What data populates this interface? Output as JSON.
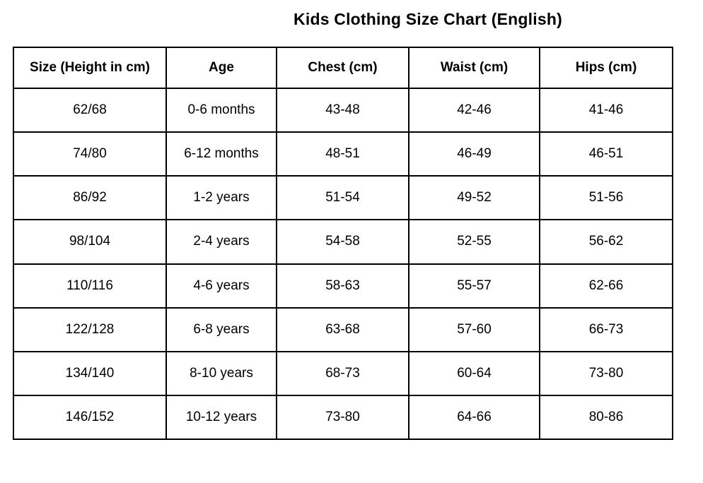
{
  "title": "Kids Clothing Size Chart (English)",
  "table": {
    "columns": [
      "Size (Height in cm)",
      "Age",
      "Chest (cm)",
      "Waist (cm)",
      "Hips (cm)"
    ],
    "rows": [
      [
        "62/68",
        "0-6 months",
        "43-48",
        "42-46",
        "41-46"
      ],
      [
        "74/80",
        "6-12 months",
        "48-51",
        "46-49",
        "46-51"
      ],
      [
        "86/92",
        "1-2 years",
        "51-54",
        "49-52",
        "51-56"
      ],
      [
        "98/104",
        "2-4 years",
        "54-58",
        "52-55",
        "56-62"
      ],
      [
        "110/116",
        "4-6 years",
        "58-63",
        "55-57",
        "62-66"
      ],
      [
        "122/128",
        "6-8 years",
        "63-68",
        "57-60",
        "66-73"
      ],
      [
        "134/140",
        "8-10 years",
        "68-73",
        "60-64",
        "73-80"
      ],
      [
        "146/152",
        "10-12 years",
        "73-80",
        "64-66",
        "80-86"
      ]
    ]
  },
  "colors": {
    "background": "#ffffff",
    "border": "#000000",
    "text": "#000000"
  }
}
